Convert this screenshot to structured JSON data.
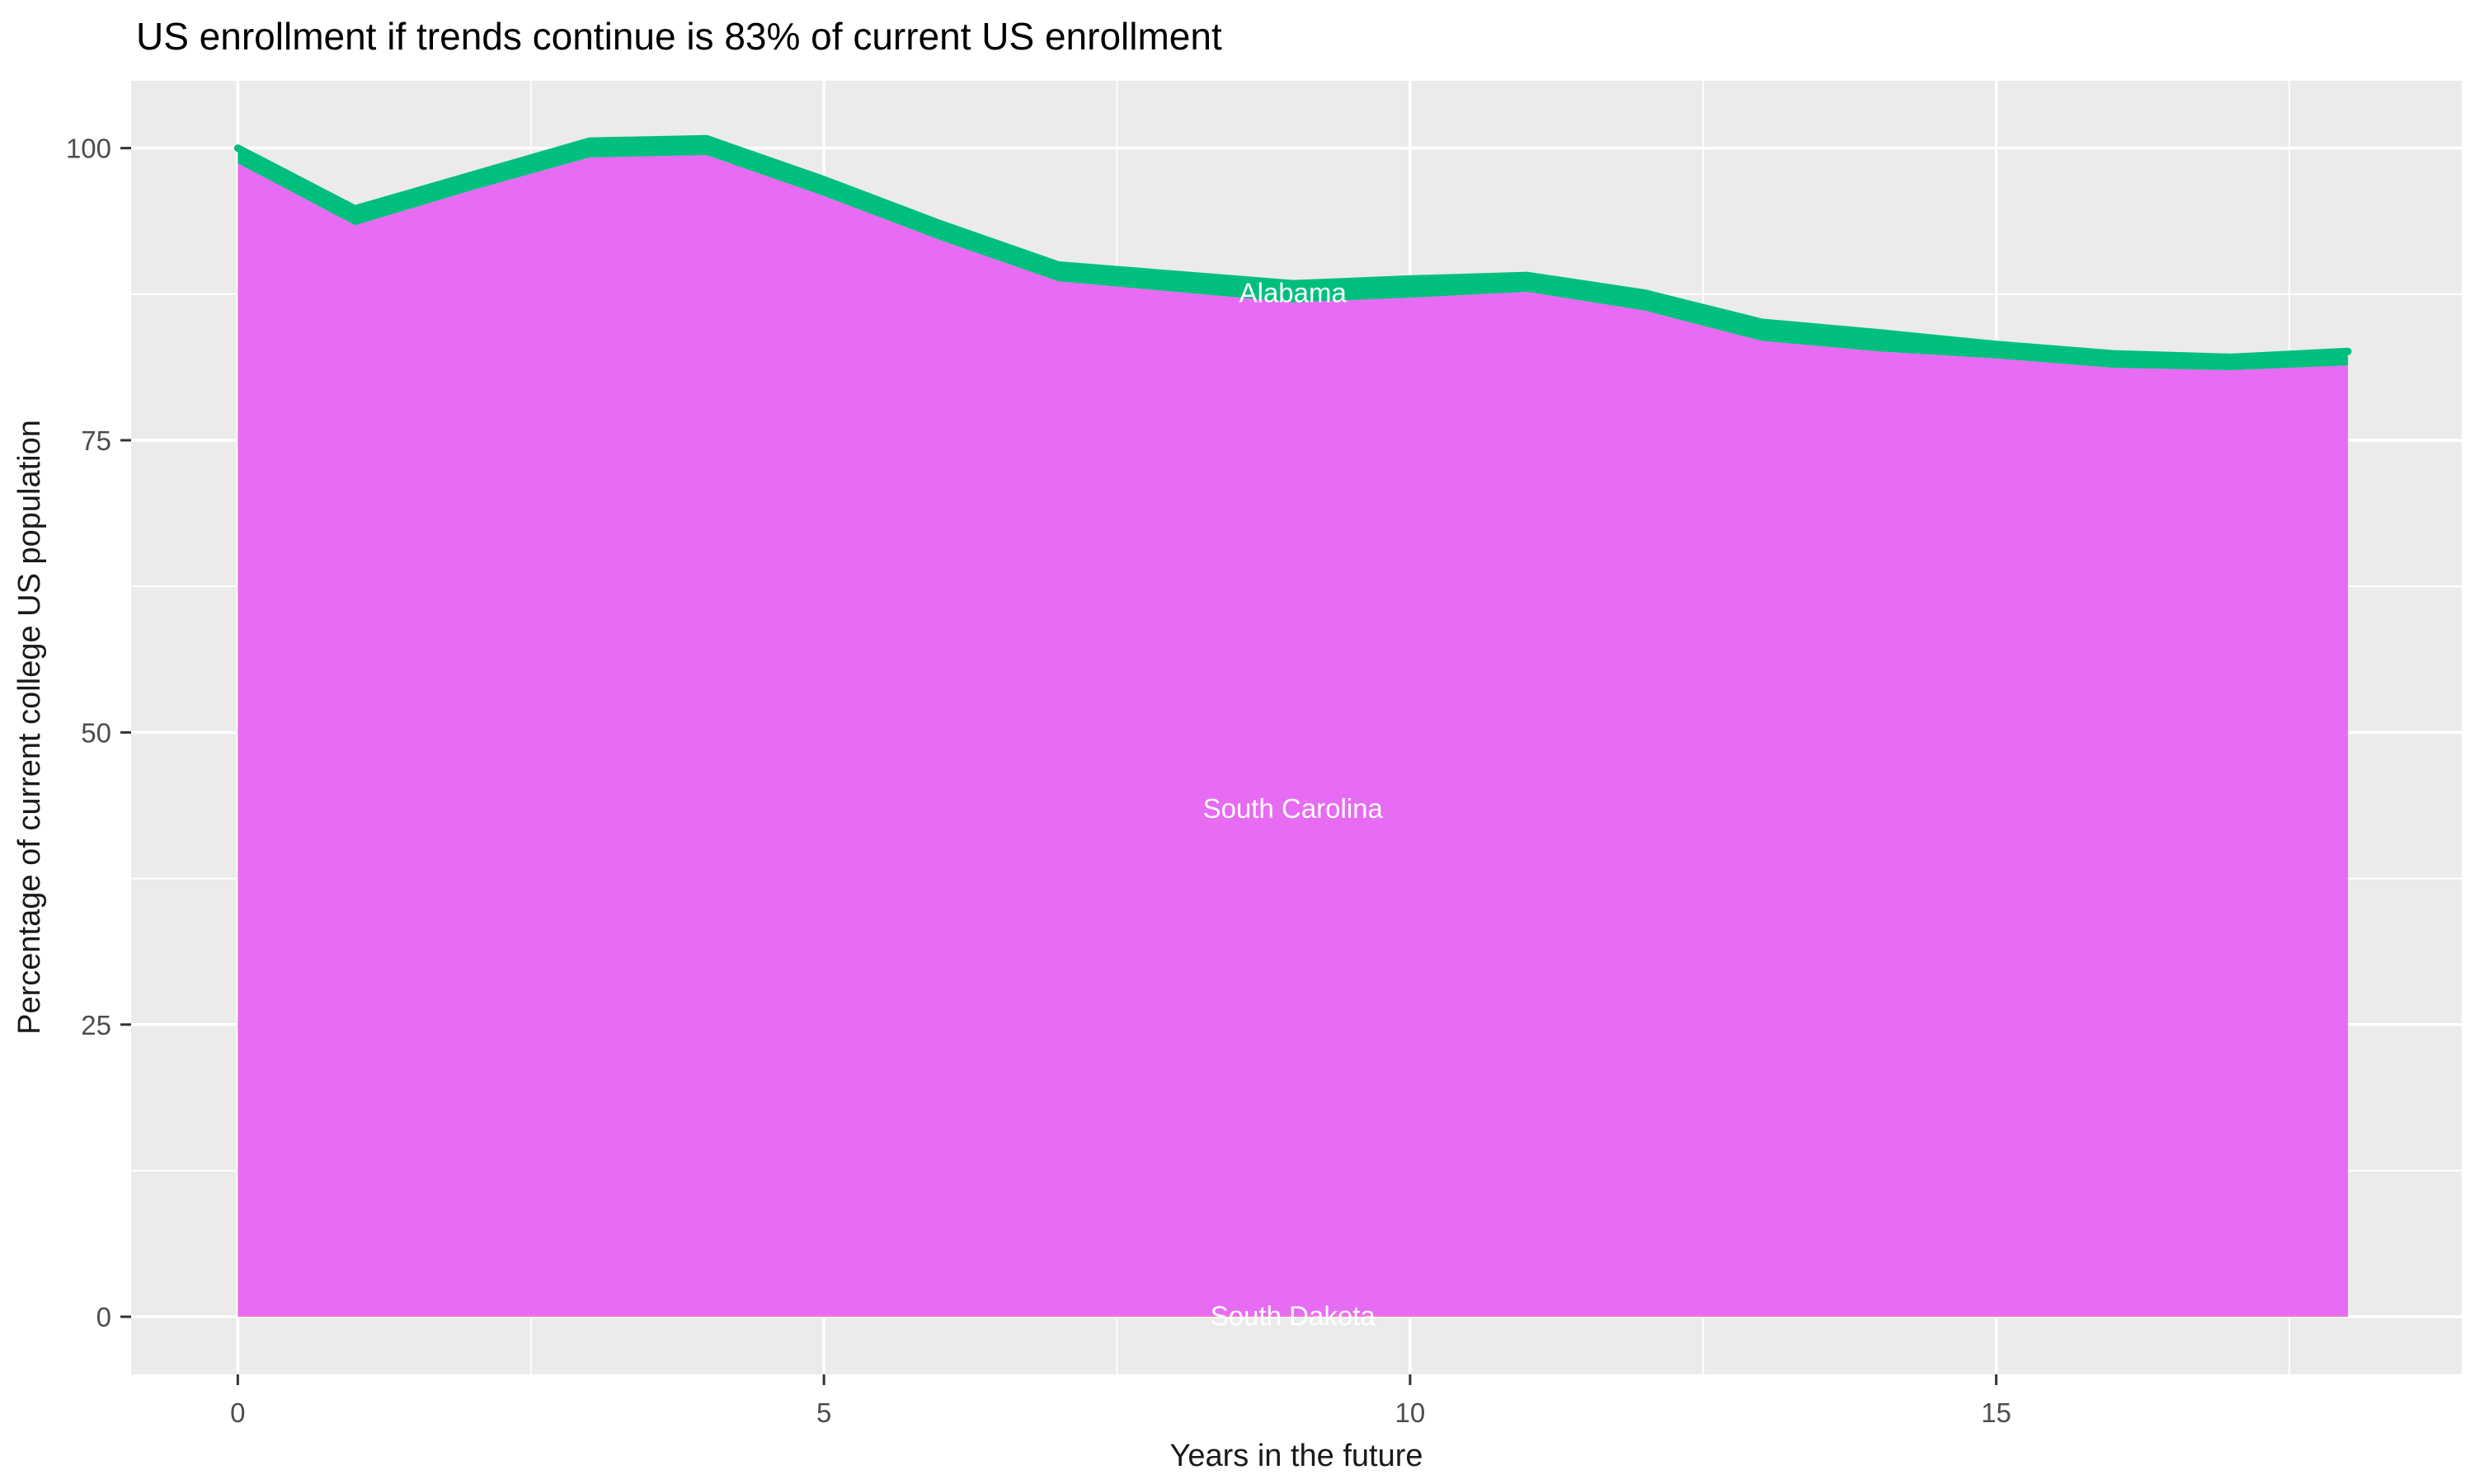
{
  "title": "US enrollment if trends continue is 83% of current US enrollment",
  "chart_data": {
    "type": "area",
    "stacked": true,
    "title": "US enrollment if trends continue is 83% of current US enrollment",
    "xlabel": "Years in the future",
    "ylabel": "Percentage of current college US population",
    "x": [
      0,
      1,
      2,
      3,
      4,
      5,
      6,
      7,
      8,
      9,
      10,
      11,
      12,
      13,
      14,
      15,
      16,
      17,
      18
    ],
    "series": [
      {
        "name": "South Dakota",
        "color": "#FF62BC",
        "values": [
          0.1,
          0.1,
          0.1,
          0.1,
          0.1,
          0.1,
          0.1,
          0.1,
          0.1,
          0.1,
          0.1,
          0.1,
          0.1,
          0.1,
          0.1,
          0.1,
          0.1,
          0.1,
          0.1
        ]
      },
      {
        "name": "South Carolina",
        "color": "#E76BF3",
        "values": [
          98.6,
          93.3,
          96.3,
          99.1,
          99.3,
          95.8,
          92.0,
          88.5,
          87.6,
          86.7,
          87.1,
          87.6,
          86.0,
          83.4,
          82.5,
          81.9,
          81.1,
          80.9,
          81.3
        ]
      },
      {
        "name": "Alabama",
        "color": "#00BF7D",
        "values": [
          1.3,
          1.4,
          1.3,
          1.4,
          1.4,
          1.4,
          1.4,
          1.4,
          1.5,
          1.6,
          1.6,
          1.4,
          1.5,
          1.6,
          1.6,
          1.2,
          1.2,
          1.1,
          1.2
        ]
      }
    ],
    "totals": [
      100.0,
      94.8,
      97.7,
      100.6,
      100.8,
      97.3,
      93.5,
      90.0,
      89.2,
      88.4,
      88.8,
      89.1,
      87.6,
      85.1,
      84.2,
      83.2,
      82.4,
      82.1,
      82.6
    ],
    "x_ticks": [
      0,
      5,
      10,
      15
    ],
    "y_ticks": [
      0,
      25,
      50,
      75,
      100
    ],
    "x_minor_ticks": [
      2.5,
      7.5,
      12.5,
      17.5
    ],
    "y_minor_ticks": [
      12.5,
      37.5,
      62.5,
      87.5
    ],
    "xlim": [
      -0.91,
      18.97
    ],
    "ylim": [
      -4.93,
      105.76
    ],
    "label_x": 9,
    "legend": "none",
    "grid": true
  },
  "theme": {
    "panel_bg": "#EBEBEB",
    "grid_color": "#FFFFFF",
    "tick_mark_color": "#333333",
    "tick_text_color": "#4D4D4D",
    "area_label_color": "#FFFFFF",
    "top_line_color": "#00BF7D",
    "background": "#FFFFFF"
  }
}
